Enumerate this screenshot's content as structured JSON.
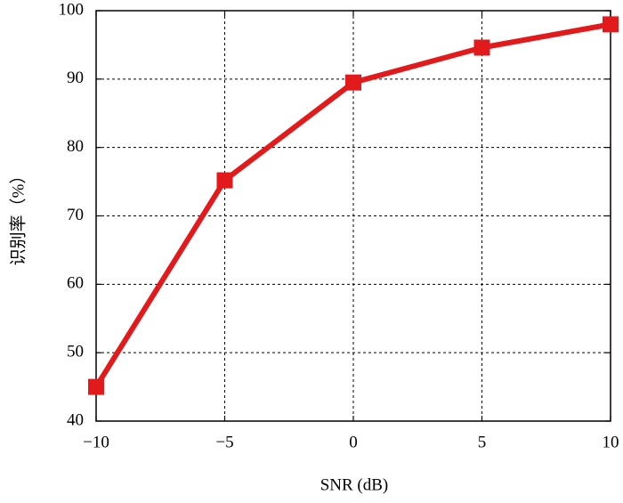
{
  "chart_data": {
    "type": "line",
    "xlabel": "SNR (dB)",
    "ylabel": "识别率（%）",
    "x": [
      -10,
      -5,
      0,
      5,
      10
    ],
    "series": [
      {
        "name": "识别率",
        "color": "#e31a1c",
        "values": [
          45,
          75.2,
          89.5,
          94.6,
          98
        ]
      }
    ],
    "xlim": [
      -10,
      10
    ],
    "xticks": [
      {
        "value": -10,
        "label": "−10"
      },
      {
        "value": -5,
        "label": "−5"
      },
      0,
      5,
      10
    ],
    "ylim": [
      40,
      100
    ],
    "yticks": [
      40,
      50,
      60,
      70,
      80,
      90,
      100
    ],
    "grid": true
  }
}
